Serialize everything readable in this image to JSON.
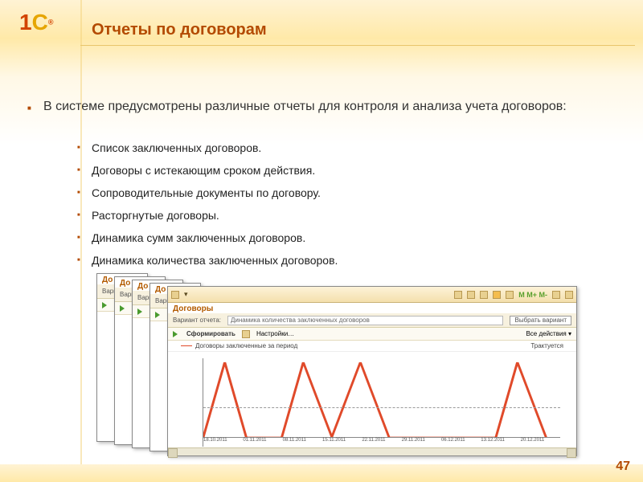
{
  "logo": {
    "one": "1",
    "c": "C",
    "reg": "®"
  },
  "title": "Отчеты по договорам",
  "lead": "В системе предусмотрены различные отчеты для контроля и анализа учета договоров:",
  "bullets": [
    "Список заключенных договоров.",
    "Договоры с истекающим сроком действия.",
    "Сопроводительные документы по договору.",
    "Расторгнутые договоры.",
    "Динамика сумм заключенных договоров.",
    "Динамика количества заключенных договоров."
  ],
  "page": "47",
  "window": {
    "title": "Договоры",
    "variant_label": "Вариант отчета:",
    "variant_value": "Динамика количества заключенных договоров",
    "choose_variant": "Выбрать вариант",
    "form": "Сформировать",
    "settings": "Настройки…",
    "all_actions": "Все действия ▾",
    "legend_a": "Договоры заключенные за период",
    "legend_b": "Трактуется",
    "stub_title_prefix": "До",
    "stub_variant_prefix": "Вари"
  },
  "chart": {
    "type": "line",
    "xlabels": [
      "18.10.2011",
      "01.11.2011",
      "08.11.2011",
      "15.11.2011",
      "22.11.2011",
      "29.11.2011",
      "06.12.2011",
      "13.12.2011",
      "20.12.2011"
    ],
    "series": [
      {
        "name": "count",
        "color": "#e04a2a",
        "points": [
          [
            0,
            0
          ],
          [
            6,
            95
          ],
          [
            12,
            0
          ],
          [
            22,
            0
          ],
          [
            28,
            95
          ],
          [
            36,
            0
          ],
          [
            44,
            95
          ],
          [
            52,
            0
          ],
          [
            62,
            0
          ],
          [
            72,
            0
          ],
          [
            82,
            0
          ],
          [
            88,
            95
          ],
          [
            96,
            0
          ]
        ]
      }
    ],
    "ylim": [
      0,
      100
    ],
    "midline_pct": 62,
    "axis_color": "#888888",
    "bg": "#ffffff"
  },
  "colors": {
    "accent": "#b34a00",
    "titlebar_grad_top": "#fdf3d8",
    "titlebar_grad_bot": "#f4e0ad"
  }
}
